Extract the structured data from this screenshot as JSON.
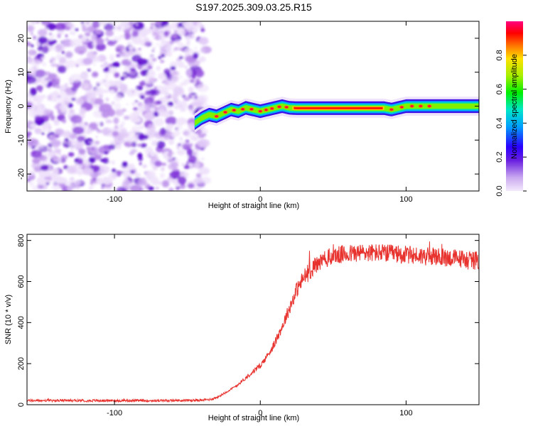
{
  "title": "S197.2025.309.03.25.R15",
  "chart_data": [
    {
      "type": "heatmap",
      "name": "spectrogram",
      "xlabel": "Height of straight line (km)",
      "ylabel": "Frequency (Hz)",
      "xlim": [
        -160,
        150
      ],
      "ylim": [
        -25,
        25
      ],
      "xticks": [
        -100,
        0,
        100
      ],
      "yticks": [
        -20,
        -10,
        0,
        10,
        20
      ],
      "noise_region_x": [
        -160,
        -37
      ],
      "signal_track": [
        {
          "x": -45,
          "f": -5.0
        },
        {
          "x": -40,
          "f": -3.5
        },
        {
          "x": -35,
          "f": -2.5
        },
        {
          "x": -30,
          "f": -3.0
        },
        {
          "x": -25,
          "f": -2.0
        },
        {
          "x": -20,
          "f": -1.0
        },
        {
          "x": -15,
          "f": -1.5
        },
        {
          "x": -10,
          "f": -0.5
        },
        {
          "x": -5,
          "f": -1.0
        },
        {
          "x": 0,
          "f": -1.5
        },
        {
          "x": 5,
          "f": -1.0
        },
        {
          "x": 10,
          "f": -0.5
        },
        {
          "x": 15,
          "f": 0.0
        },
        {
          "x": 20,
          "f": -0.5
        },
        {
          "x": 25,
          "f": -0.6
        },
        {
          "x": 85,
          "f": -0.6
        },
        {
          "x": 90,
          "f": -1.0
        },
        {
          "x": 95,
          "f": -0.5
        },
        {
          "x": 100,
          "f": 0.0
        },
        {
          "x": 150,
          "f": 0.0
        }
      ],
      "colorbar": {
        "label": "Normalized spectral amplitude",
        "range": [
          0,
          1
        ],
        "ticks": [
          "0.0",
          "0.2",
          "0.4",
          "0.6",
          "0.8"
        ]
      }
    },
    {
      "type": "line",
      "name": "snr",
      "xlabel": "Height of straight line (km)",
      "ylabel": "SNR (10 * v/v)",
      "xlim": [
        -160,
        150
      ],
      "ylim": [
        0,
        830
      ],
      "xticks": [
        -100,
        0,
        100
      ],
      "yticks": [
        0,
        200,
        400,
        600,
        800
      ],
      "color": "#e8322e",
      "series": [
        {
          "name": "SNR",
          "x": [
            -160,
            -140,
            -120,
            -100,
            -80,
            -60,
            -40,
            -35,
            -30,
            -25,
            -20,
            -15,
            -10,
            -5,
            0,
            5,
            10,
            15,
            20,
            25,
            30,
            35,
            40,
            45,
            50,
            60,
            70,
            80,
            90,
            100,
            110,
            120,
            130,
            140,
            150
          ],
          "y": [
            20,
            20,
            20,
            20,
            20,
            20,
            22,
            25,
            35,
            55,
            75,
            100,
            130,
            160,
            190,
            240,
            300,
            380,
            470,
            560,
            620,
            660,
            690,
            710,
            725,
            735,
            740,
            740,
            735,
            730,
            725,
            720,
            715,
            710,
            700
          ]
        }
      ]
    }
  ]
}
